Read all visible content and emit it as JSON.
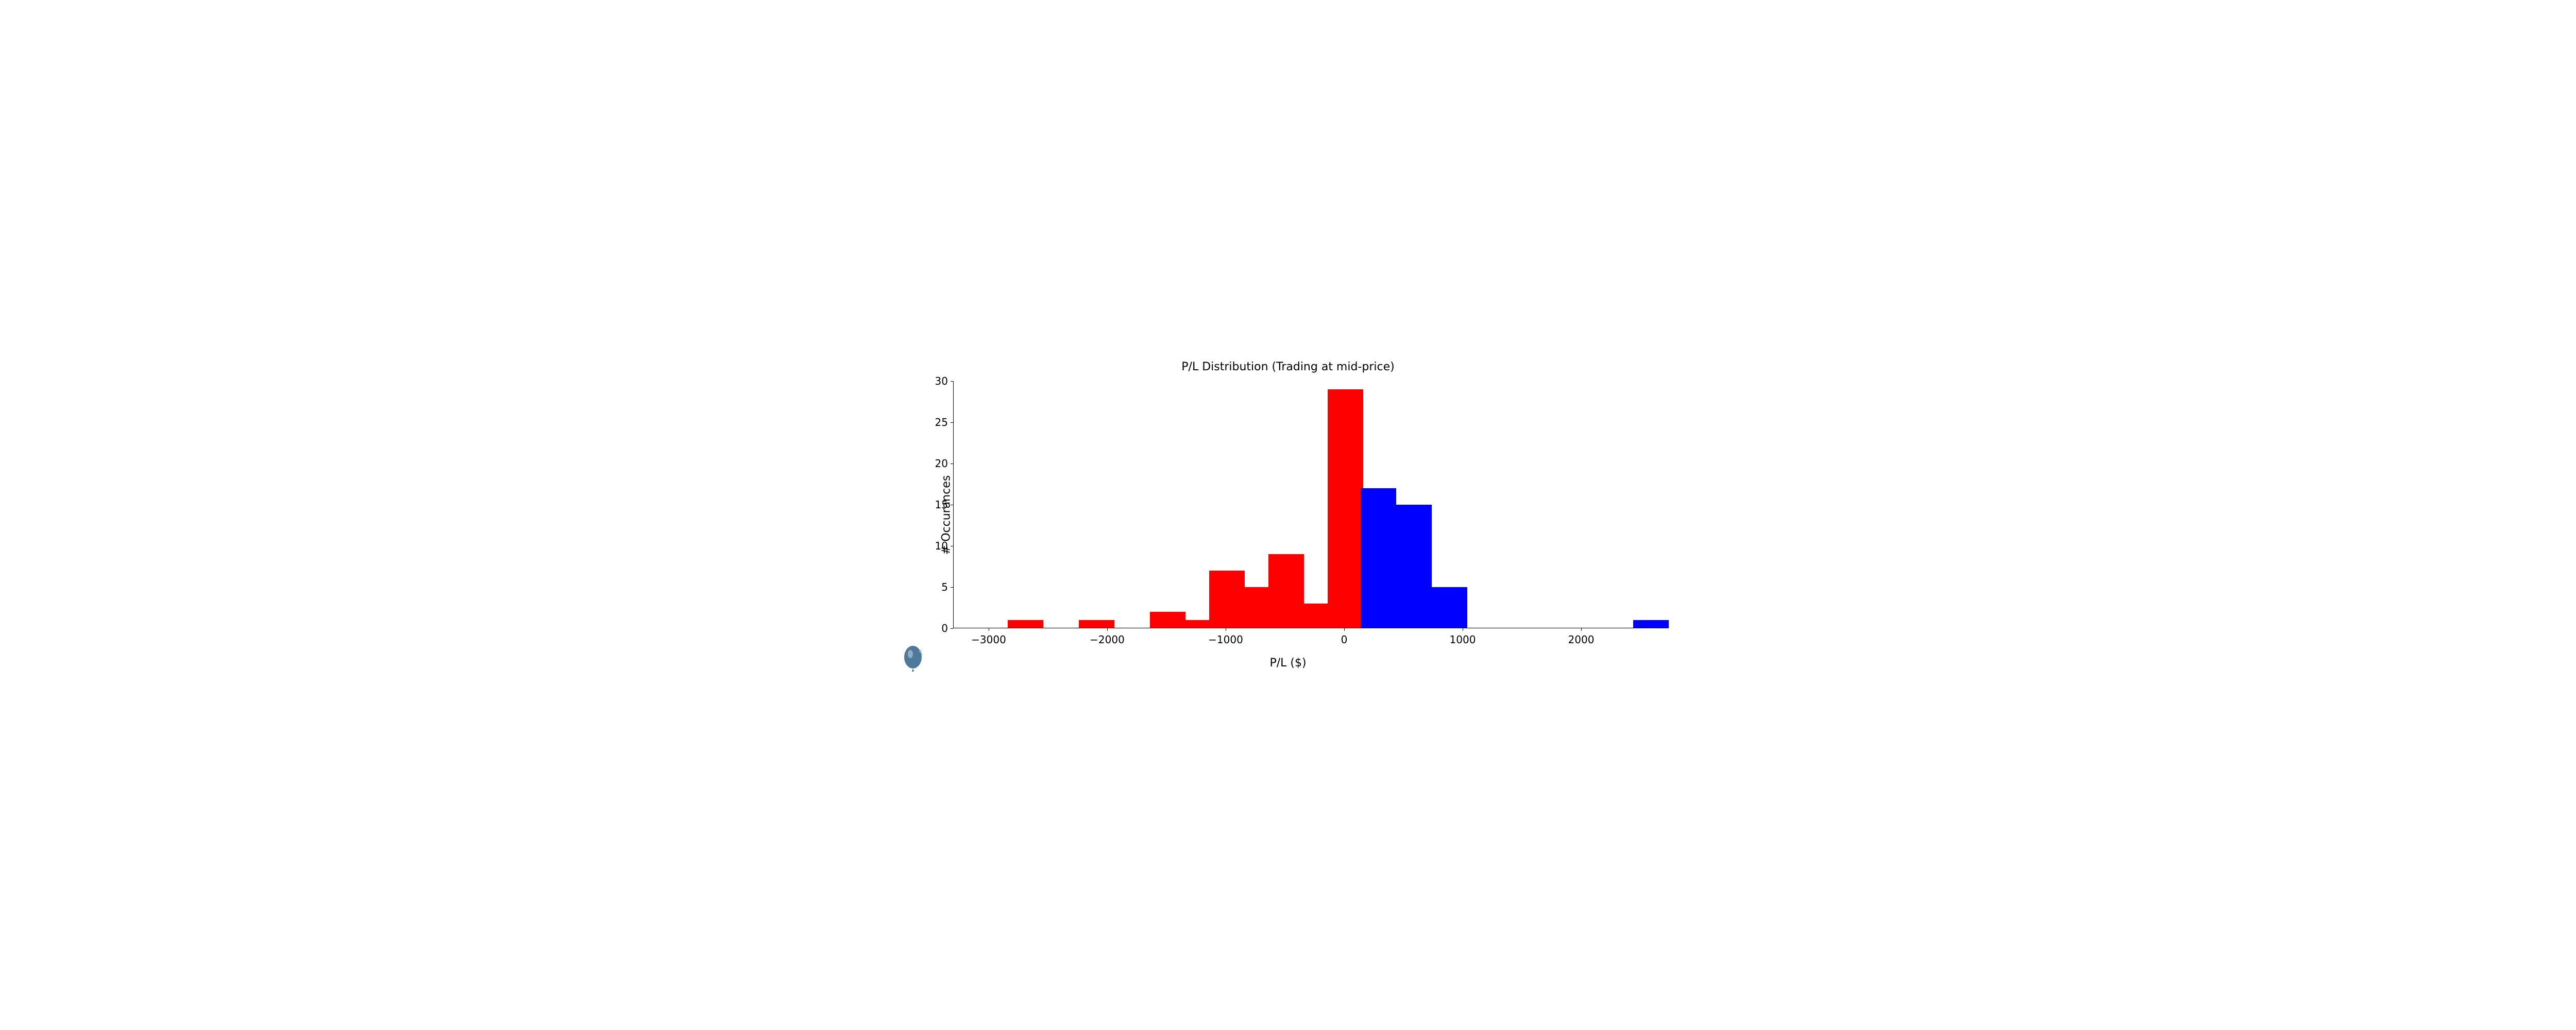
{
  "chart": {
    "type": "histogram",
    "title": "P/L Distribution (Trading at mid-price)",
    "title_fontsize": 22,
    "xlabel": "P/L ($)",
    "ylabel": "# Occurances",
    "label_fontsize": 22,
    "tick_fontsize": 20,
    "xlim": [
      -3300,
      2700
    ],
    "ylim": [
      0,
      30
    ],
    "xticks": [
      -3000,
      -2000,
      -1000,
      0,
      1000,
      2000
    ],
    "yticks": [
      0,
      5,
      10,
      15,
      20,
      25,
      30
    ],
    "background_color": "#ffffff",
    "axis_color": "#000000",
    "bin_width": 300,
    "bars": [
      {
        "x_start": -2840,
        "value": 1,
        "color": "#ff0000"
      },
      {
        "x_start": -2540,
        "value": 0,
        "color": "#ff0000"
      },
      {
        "x_start": -2240,
        "value": 1,
        "color": "#ff0000"
      },
      {
        "x_start": -1940,
        "value": 0,
        "color": "#ff0000"
      },
      {
        "x_start": -1640,
        "value": 2,
        "color": "#ff0000"
      },
      {
        "x_start": -1340,
        "value": 1,
        "color": "#ff0000"
      },
      {
        "x_start": -1140,
        "value": 7,
        "color": "#ff0000"
      },
      {
        "x_start": -840,
        "value": 5,
        "color": "#ff0000"
      },
      {
        "x_start": -640,
        "value": 9,
        "color": "#ff0000"
      },
      {
        "x_start": -340,
        "value": 3,
        "color": "#ff0000"
      },
      {
        "x_start": -140,
        "value": 29,
        "color": "#ff0000"
      },
      {
        "x_start": 140,
        "value": 17,
        "color": "#0000ff"
      },
      {
        "x_start": 440,
        "value": 15,
        "color": "#0000ff"
      },
      {
        "x_start": 740,
        "value": 5,
        "color": "#0000ff"
      },
      {
        "x_start": 2440,
        "value": 1,
        "color": "#0000ff"
      }
    ]
  },
  "watermark": {
    "description": "balloon-icon",
    "fill_color": "#3b6a8f"
  }
}
